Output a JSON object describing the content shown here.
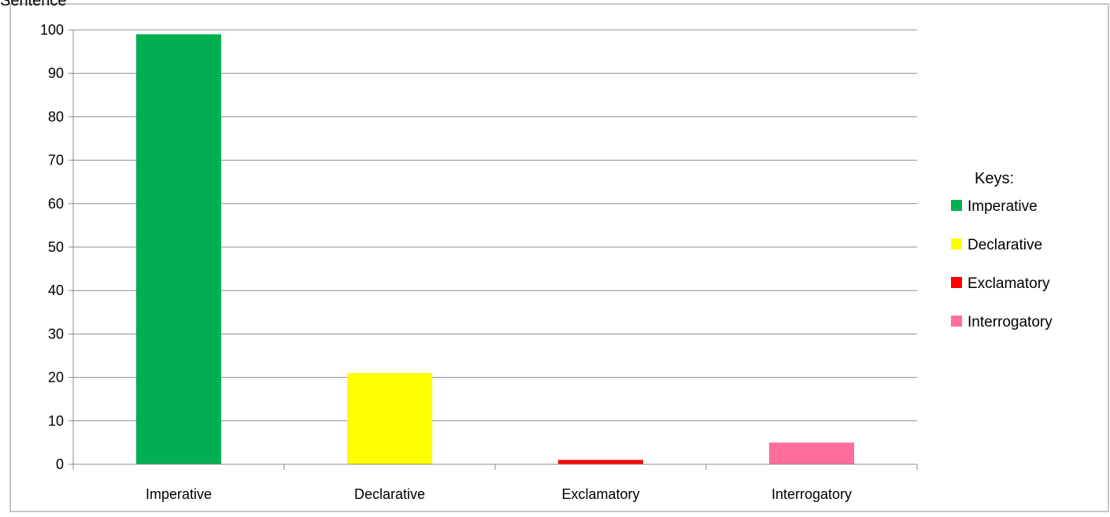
{
  "chart_data": {
    "type": "bar",
    "title": "Sentence",
    "xlabel": "",
    "ylabel": "",
    "categories": [
      "Imperative",
      "Declarative",
      "Exclamatory",
      "Interrogatory"
    ],
    "values": [
      99,
      21,
      1,
      5
    ],
    "colors": [
      "#00B050",
      "#FFFF00",
      "#FF0000",
      "#FF6D9B"
    ],
    "ylim": [
      0,
      100
    ],
    "yticks": [
      0,
      10,
      20,
      30,
      40,
      50,
      60,
      70,
      80,
      90,
      100
    ],
    "grid": true,
    "legend": {
      "title": "Keys:",
      "placement": "right",
      "entries": [
        "Imperative",
        "Declarative",
        "Exclamatory",
        "Interrogatory"
      ]
    }
  }
}
